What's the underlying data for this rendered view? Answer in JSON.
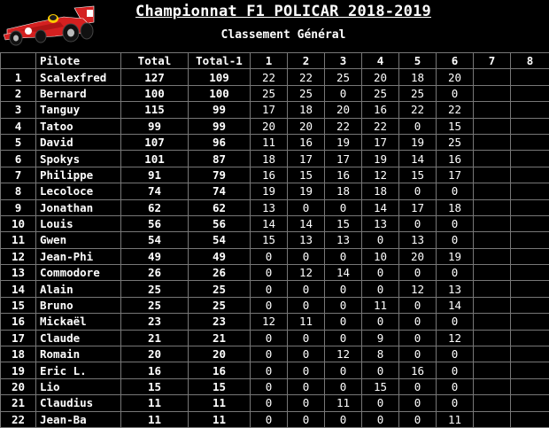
{
  "header": {
    "title": "Championnat F1 POLICAR 2018-2019",
    "subtitle": "Classement Général"
  },
  "table": {
    "columns": [
      "",
      "Pilote",
      "Total",
      "Total-1",
      "1",
      "2",
      "3",
      "4",
      "5",
      "6",
      "7",
      "8"
    ],
    "rows": [
      {
        "rank": "1",
        "name": "Scalexfred",
        "total": "127",
        "total1": "109",
        "races": [
          "22",
          "22",
          "25",
          "20",
          "18",
          "20",
          "",
          ""
        ]
      },
      {
        "rank": "2",
        "name": "Bernard",
        "total": "100",
        "total1": "100",
        "races": [
          "25",
          "25",
          "0",
          "25",
          "25",
          "0",
          "",
          ""
        ]
      },
      {
        "rank": "3",
        "name": "Tanguy",
        "total": "115",
        "total1": "99",
        "races": [
          "17",
          "18",
          "20",
          "16",
          "22",
          "22",
          "",
          ""
        ]
      },
      {
        "rank": "4",
        "name": "Tatoo",
        "total": "99",
        "total1": "99",
        "races": [
          "20",
          "20",
          "22",
          "22",
          "0",
          "15",
          "",
          ""
        ]
      },
      {
        "rank": "5",
        "name": "David",
        "total": "107",
        "total1": "96",
        "races": [
          "11",
          "16",
          "19",
          "17",
          "19",
          "25",
          "",
          ""
        ]
      },
      {
        "rank": "6",
        "name": "Spokys",
        "total": "101",
        "total1": "87",
        "races": [
          "18",
          "17",
          "17",
          "19",
          "14",
          "16",
          "",
          ""
        ]
      },
      {
        "rank": "7",
        "name": "Philippe",
        "total": "91",
        "total1": "79",
        "races": [
          "16",
          "15",
          "16",
          "12",
          "15",
          "17",
          "",
          ""
        ]
      },
      {
        "rank": "8",
        "name": "Lecoloce",
        "total": "74",
        "total1": "74",
        "races": [
          "19",
          "19",
          "18",
          "18",
          "0",
          "0",
          "",
          ""
        ]
      },
      {
        "rank": "9",
        "name": "Jonathan",
        "total": "62",
        "total1": "62",
        "races": [
          "13",
          "0",
          "0",
          "14",
          "17",
          "18",
          "",
          ""
        ]
      },
      {
        "rank": "10",
        "name": "Louis",
        "total": "56",
        "total1": "56",
        "races": [
          "14",
          "14",
          "15",
          "13",
          "0",
          "0",
          "",
          ""
        ]
      },
      {
        "rank": "11",
        "name": "Gwen",
        "total": "54",
        "total1": "54",
        "races": [
          "15",
          "13",
          "13",
          "0",
          "13",
          "0",
          "",
          ""
        ]
      },
      {
        "rank": "12",
        "name": "Jean-Phi",
        "total": "49",
        "total1": "49",
        "races": [
          "0",
          "0",
          "0",
          "10",
          "20",
          "19",
          "",
          ""
        ]
      },
      {
        "rank": "13",
        "name": "Commodore",
        "total": "26",
        "total1": "26",
        "races": [
          "0",
          "12",
          "14",
          "0",
          "0",
          "0",
          "",
          ""
        ]
      },
      {
        "rank": "14",
        "name": "Alain",
        "total": "25",
        "total1": "25",
        "races": [
          "0",
          "0",
          "0",
          "0",
          "12",
          "13",
          "",
          ""
        ]
      },
      {
        "rank": "15",
        "name": "Bruno",
        "total": "25",
        "total1": "25",
        "races": [
          "0",
          "0",
          "0",
          "11",
          "0",
          "14",
          "",
          ""
        ]
      },
      {
        "rank": "16",
        "name": "Mickaël",
        "total": "23",
        "total1": "23",
        "races": [
          "12",
          "11",
          "0",
          "0",
          "0",
          "0",
          "",
          ""
        ]
      },
      {
        "rank": "17",
        "name": "Claude",
        "total": "21",
        "total1": "21",
        "races": [
          "0",
          "0",
          "0",
          "9",
          "0",
          "12",
          "",
          ""
        ]
      },
      {
        "rank": "18",
        "name": "Romain",
        "total": "20",
        "total1": "20",
        "races": [
          "0",
          "0",
          "12",
          "8",
          "0",
          "0",
          "",
          ""
        ]
      },
      {
        "rank": "19",
        "name": "Eric L.",
        "total": "16",
        "total1": "16",
        "races": [
          "0",
          "0",
          "0",
          "0",
          "16",
          "0",
          "",
          ""
        ]
      },
      {
        "rank": "20",
        "name": "Lio",
        "total": "15",
        "total1": "15",
        "races": [
          "0",
          "0",
          "0",
          "15",
          "0",
          "0",
          "",
          ""
        ]
      },
      {
        "rank": "21",
        "name": "Claudius",
        "total": "11",
        "total1": "11",
        "races": [
          "0",
          "0",
          "11",
          "0",
          "0",
          "0",
          "",
          ""
        ]
      },
      {
        "rank": "22",
        "name": "Jean-Ba",
        "total": "11",
        "total1": "11",
        "races": [
          "0",
          "0",
          "0",
          "0",
          "0",
          "11",
          "",
          ""
        ]
      }
    ]
  },
  "colors": {
    "background": "#000000",
    "text": "#ffffff",
    "grid": "#777777",
    "car_red": "#d42020"
  }
}
